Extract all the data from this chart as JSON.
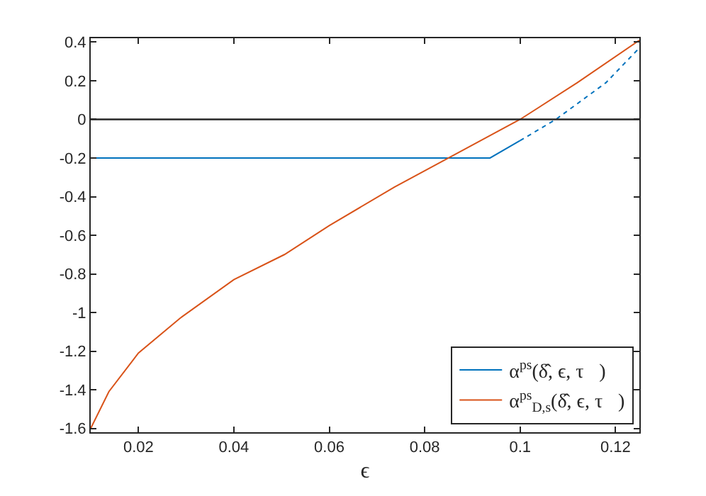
{
  "chart_data": {
    "type": "line",
    "xlabel": "ϵ",
    "x": [
      0.01,
      0.0138,
      0.02,
      0.0287,
      0.04,
      0.0506,
      0.06,
      0.0737,
      0.085,
      0.1,
      0.112,
      0.125
    ],
    "series": [
      {
        "name": "α$^{ps}$(δ̂, ϵ, τ⃗)",
        "color": "#0072bd",
        "x": [
          0.01,
          0.0937,
          0.1
        ],
        "values": [
          -0.2,
          -0.2,
          -0.11
        ]
      },
      {
        "color": "#0072bd",
        "line_style": "dotted",
        "x": [
          0.1,
          0.1075,
          0.118,
          0.125
        ],
        "values": [
          -0.11,
          0.0,
          0.19,
          0.37
        ]
      },
      {
        "name": "α$^{ps}$$_{D,s}$(δ̂, ϵ, τ⃗)",
        "color": "#d95319",
        "values": [
          -1.6,
          -1.41,
          -1.21,
          -1.03,
          -0.83,
          -0.7,
          -0.55,
          -0.35,
          -0.2,
          0.0,
          0.19,
          0.41
        ]
      }
    ],
    "xlim": [
      0.01,
      0.125
    ],
    "ylim": [
      -1.62,
      0.42
    ],
    "xticks": [
      0.02,
      0.04,
      0.06,
      0.08,
      0.1,
      0.12
    ],
    "yticks": [
      -1.6,
      -1.4,
      -1.2,
      -1,
      -0.8,
      -0.6,
      -0.4,
      -0.2,
      0,
      0.2,
      0.4
    ],
    "ref_lines": [
      {
        "axis": "y",
        "value": 0,
        "color": "#262626"
      }
    ],
    "legend": "bottom right",
    "line_style": "solid",
    "marker": "none"
  }
}
